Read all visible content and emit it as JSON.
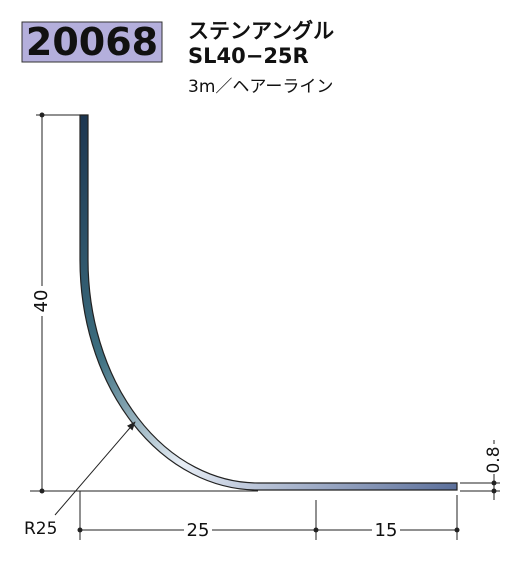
{
  "header": {
    "code": "20068",
    "name": "ステンアングル",
    "model": "SL40−25R",
    "spec": "3m／ヘアーライン"
  },
  "dimensions": {
    "height": "40",
    "radius": "R25",
    "width_curve": "25",
    "width_flat": "15",
    "thickness": "0.8"
  }
}
